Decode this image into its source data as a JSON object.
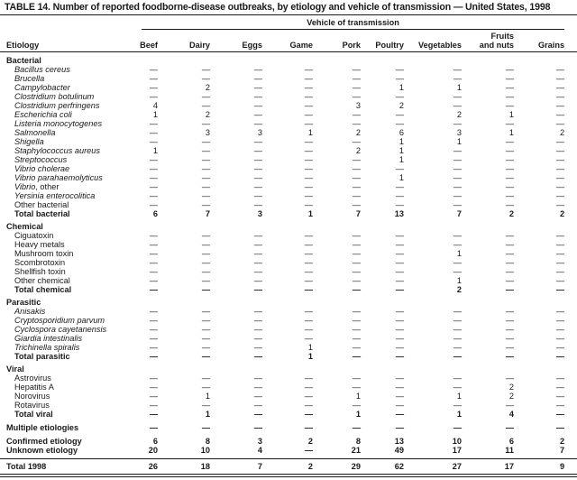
{
  "title": "TABLE 14. Number of reported foodborne-disease outbreaks, by etiology and vehicle of transmission — United States, 1998",
  "table": {
    "span_header": "Vehicle of transmission",
    "etiology_header": "Etiology",
    "columns": [
      "Beef",
      "Dairy",
      "Eggs",
      "Game",
      "Pork",
      "Poultry",
      "Vegetables",
      "Fruits\nand nuts",
      "Grains"
    ],
    "rows": [
      {
        "label": "Bacterial",
        "type": "section"
      },
      {
        "label": "Bacillus cereus",
        "type": "species",
        "values": [
          "—",
          "—",
          "—",
          "—",
          "—",
          "—",
          "—",
          "—",
          "—"
        ]
      },
      {
        "label": "Brucella",
        "type": "species",
        "values": [
          "—",
          "—",
          "—",
          "—",
          "—",
          "—",
          "—",
          "—",
          "—"
        ]
      },
      {
        "label": "Campylobacter",
        "type": "species",
        "values": [
          "—",
          "2",
          "—",
          "—",
          "—",
          "1",
          "1",
          "—",
          "—"
        ]
      },
      {
        "label": "Clostridium botulinum",
        "type": "species",
        "values": [
          "—",
          "—",
          "—",
          "—",
          "—",
          "—",
          "—",
          "—",
          "—"
        ]
      },
      {
        "label": "Clostridium perfringens",
        "type": "species",
        "values": [
          "4",
          "—",
          "—",
          "—",
          "3",
          "2",
          "—",
          "—",
          "—"
        ]
      },
      {
        "label": "Escherichia coli",
        "type": "species",
        "values": [
          "1",
          "2",
          "—",
          "—",
          "—",
          "—",
          "2",
          "1",
          "—"
        ]
      },
      {
        "label": "Listeria monocytogenes",
        "type": "species",
        "values": [
          "—",
          "—",
          "—",
          "—",
          "—",
          "—",
          "—",
          "—",
          "—"
        ]
      },
      {
        "label": "Salmonella",
        "type": "species",
        "values": [
          "—",
          "3",
          "3",
          "1",
          "2",
          "6",
          "3",
          "1",
          "2"
        ]
      },
      {
        "label": "Shigella",
        "type": "species",
        "values": [
          "—",
          "—",
          "—",
          "—",
          "—",
          "1",
          "1",
          "—",
          "—"
        ]
      },
      {
        "label": "Staphylococcus aureus",
        "type": "species",
        "values": [
          "1",
          "—",
          "—",
          "—",
          "2",
          "1",
          "—",
          "—",
          "—"
        ]
      },
      {
        "label": "Streptococcus",
        "type": "species",
        "values": [
          "—",
          "—",
          "—",
          "—",
          "—",
          "1",
          "—",
          "—",
          "—"
        ]
      },
      {
        "label": "Vibrio cholerae",
        "type": "species",
        "values": [
          "—",
          "—",
          "—",
          "—",
          "—",
          "—",
          "—",
          "—",
          "—"
        ]
      },
      {
        "label": "Vibrio parahaemolyticus",
        "type": "species",
        "values": [
          "—",
          "—",
          "—",
          "—",
          "—",
          "1",
          "—",
          "—",
          "—"
        ]
      },
      {
        "label": "Vibrio",
        "label2": ", other",
        "type": "species",
        "values": [
          "—",
          "—",
          "—",
          "—",
          "—",
          "—",
          "—",
          "—",
          "—"
        ]
      },
      {
        "label": "Yersinia enterocolitica",
        "type": "species",
        "values": [
          "—",
          "—",
          "—",
          "—",
          "—",
          "—",
          "—",
          "—",
          "—"
        ]
      },
      {
        "label": "Other bacterial",
        "type": "plain",
        "values": [
          "—",
          "—",
          "—",
          "—",
          "—",
          "—",
          "—",
          "—",
          "—"
        ]
      },
      {
        "label": "Total bacterial",
        "type": "total",
        "values": [
          "6",
          "7",
          "3",
          "1",
          "7",
          "13",
          "7",
          "2",
          "2"
        ]
      },
      {
        "label": "Chemical",
        "type": "section"
      },
      {
        "label": "Ciguatoxin",
        "type": "plain",
        "values": [
          "—",
          "—",
          "—",
          "—",
          "—",
          "—",
          "—",
          "—",
          "—"
        ]
      },
      {
        "label": "Heavy metals",
        "type": "plain",
        "values": [
          "—",
          "—",
          "—",
          "—",
          "—",
          "—",
          "—",
          "—",
          "—"
        ]
      },
      {
        "label": "Mushroom toxin",
        "type": "plain",
        "values": [
          "—",
          "—",
          "—",
          "—",
          "—",
          "—",
          "1",
          "—",
          "—"
        ]
      },
      {
        "label": "Scombrotoxin",
        "type": "plain",
        "values": [
          "—",
          "—",
          "—",
          "—",
          "—",
          "—",
          "—",
          "—",
          "—"
        ]
      },
      {
        "label": "Shellfish toxin",
        "type": "plain",
        "values": [
          "—",
          "—",
          "—",
          "—",
          "—",
          "—",
          "—",
          "—",
          "—"
        ]
      },
      {
        "label": "Other chemical",
        "type": "plain",
        "values": [
          "—",
          "—",
          "—",
          "—",
          "—",
          "—",
          "1",
          "—",
          "—"
        ]
      },
      {
        "label": "Total chemical",
        "type": "total",
        "values": [
          "—",
          "—",
          "—",
          "—",
          "—",
          "—",
          "2",
          "—",
          "—"
        ]
      },
      {
        "label": "Parasitic",
        "type": "section"
      },
      {
        "label": "Anisakis",
        "type": "species",
        "values": [
          "—",
          "—",
          "—",
          "—",
          "—",
          "—",
          "—",
          "—",
          "—"
        ]
      },
      {
        "label": "Cryptosporidium parvum",
        "type": "species",
        "values": [
          "—",
          "—",
          "—",
          "—",
          "—",
          "—",
          "—",
          "—",
          "—"
        ]
      },
      {
        "label": "Cyclospora cayetanensis",
        "type": "species",
        "values": [
          "—",
          "—",
          "—",
          "—",
          "—",
          "—",
          "—",
          "—",
          "—"
        ]
      },
      {
        "label": "Giardia intestinalis",
        "type": "species",
        "values": [
          "—",
          "—",
          "—",
          "—",
          "—",
          "—",
          "—",
          "—",
          "—"
        ]
      },
      {
        "label": "Trichinella spiralis",
        "type": "species",
        "values": [
          "—",
          "—",
          "—",
          "1",
          "—",
          "—",
          "—",
          "—",
          "—"
        ]
      },
      {
        "label": "Total parasitic",
        "type": "total",
        "values": [
          "—",
          "—",
          "—",
          "1",
          "—",
          "—",
          "—",
          "—",
          "—"
        ]
      },
      {
        "label": "Viral",
        "type": "section"
      },
      {
        "label": "Astrovirus",
        "type": "plain",
        "values": [
          "—",
          "—",
          "—",
          "—",
          "—",
          "—",
          "—",
          "—",
          "—"
        ]
      },
      {
        "label": "Hepatitis A",
        "type": "plain",
        "values": [
          "—",
          "—",
          "—",
          "—",
          "—",
          "—",
          "—",
          "2",
          "—"
        ]
      },
      {
        "label": "Norovirus",
        "type": "plain",
        "values": [
          "—",
          "1",
          "—",
          "—",
          "1",
          "—",
          "1",
          "2",
          "—"
        ]
      },
      {
        "label": "Rotavirus",
        "type": "plain",
        "values": [
          "—",
          "—",
          "—",
          "—",
          "—",
          "—",
          "—",
          "—",
          "—"
        ]
      },
      {
        "label": "Total viral",
        "type": "total",
        "values": [
          "—",
          "1",
          "—",
          "—",
          "1",
          "—",
          "1",
          "4",
          "—"
        ]
      },
      {
        "label": "Multiple etiologies",
        "type": "standalone",
        "gap": true,
        "values": [
          "—",
          "—",
          "—",
          "—",
          "—",
          "—",
          "—",
          "—",
          "—"
        ]
      },
      {
        "label": "Confirmed etiology",
        "type": "standalone",
        "gap": true,
        "values": [
          "6",
          "8",
          "3",
          "2",
          "8",
          "13",
          "10",
          "6",
          "2"
        ]
      },
      {
        "label": "Unknown etiology",
        "type": "standalone",
        "values": [
          "20",
          "10",
          "4",
          "—",
          "21",
          "49",
          "17",
          "11",
          "7"
        ]
      },
      {
        "label": "Total 1998",
        "type": "grandtotal",
        "values": [
          "26",
          "18",
          "7",
          "2",
          "29",
          "62",
          "27",
          "17",
          "9"
        ]
      }
    ]
  }
}
